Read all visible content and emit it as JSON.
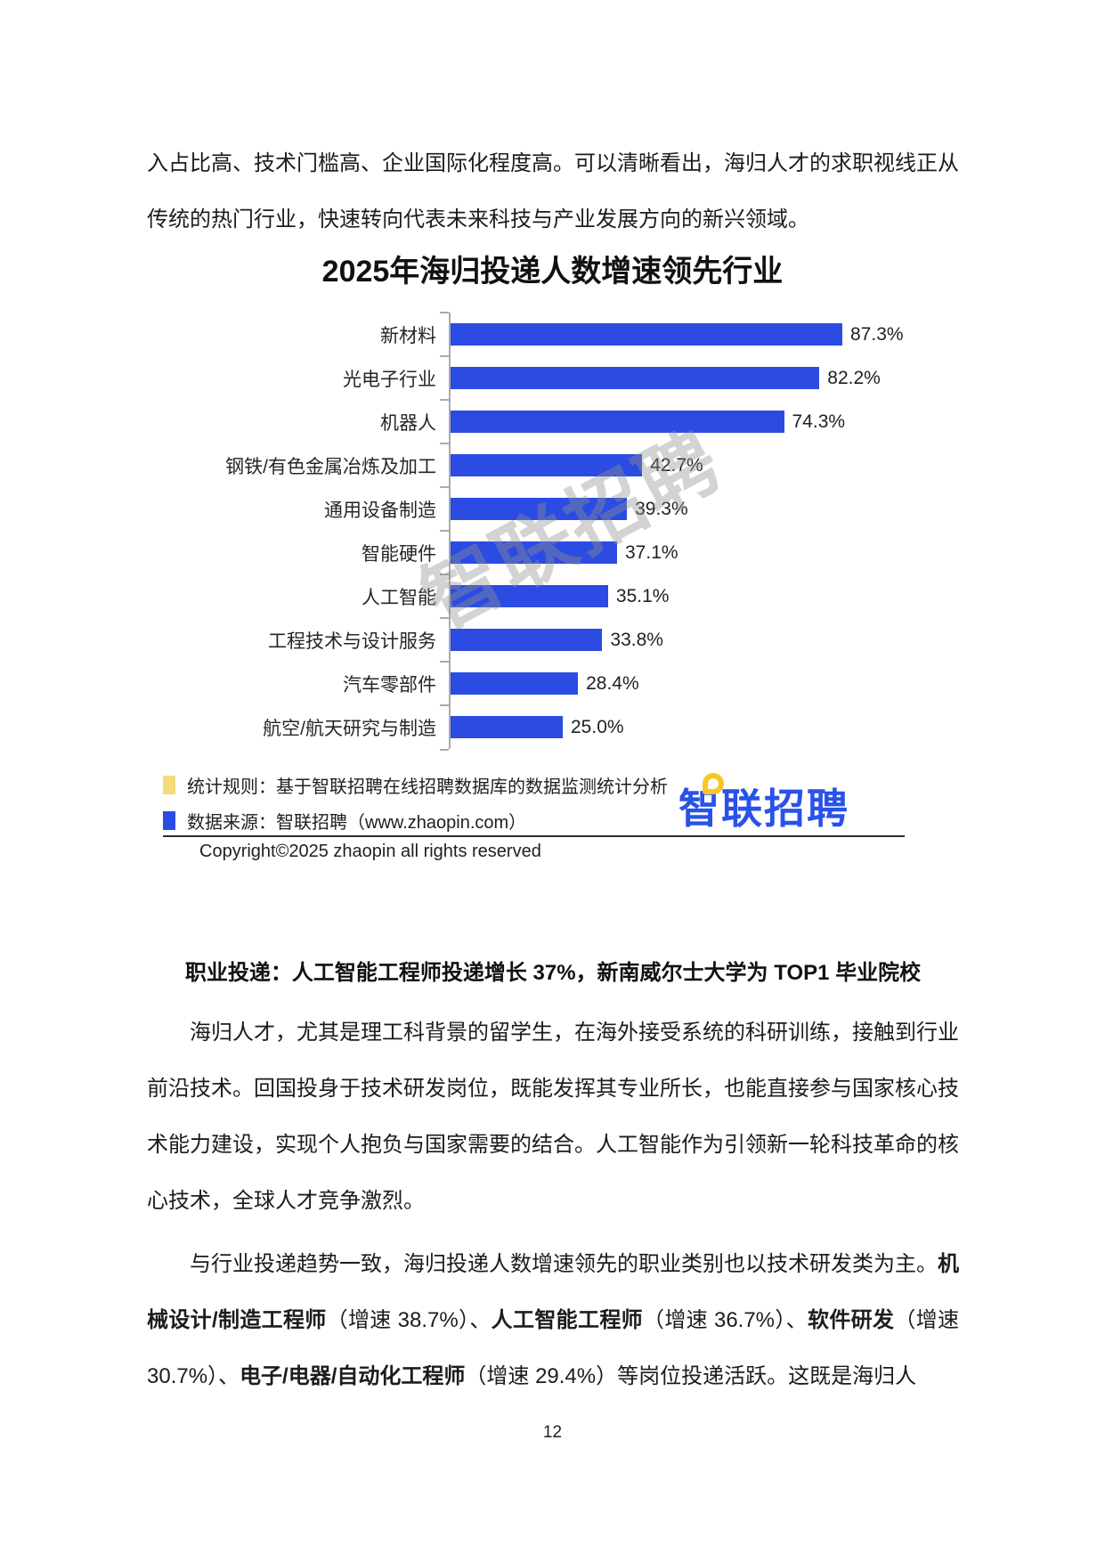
{
  "page": {
    "number": "12",
    "background": "#ffffff"
  },
  "intro_paragraph": "入占比高、技术门槛高、企业国际化程度高。可以清晰看出，海归人才的求职视线正从传统的热门行业，快速转向代表未来科技与产业发展方向的新兴领域。",
  "chart": {
    "title": "2025年海归投递人数增速领先行业",
    "bar_color": "#2B4BE2",
    "axis_color": "#ababab",
    "watermark_text": "智联招聘"
  },
  "chart_data": {
    "type": "bar",
    "orientation": "horizontal",
    "title": "2025年海归投递人数增速领先行业",
    "categories": [
      "新材料",
      "光电子行业",
      "机器人",
      "钢铁/有色金属冶炼及加工",
      "通用设备制造",
      "智能硬件",
      "人工智能",
      "工程技术与设计服务",
      "汽车零部件",
      "航空/航天研究与制造"
    ],
    "values": [
      87.3,
      82.2,
      74.3,
      42.7,
      39.3,
      37.1,
      35.1,
      33.8,
      28.4,
      25.0
    ],
    "value_labels": [
      "87.3%",
      "82.2%",
      "74.3%",
      "42.7%",
      "39.3%",
      "37.1%",
      "35.1%",
      "33.8%",
      "28.4%",
      "25.0%"
    ],
    "xlabel": "",
    "ylabel": "",
    "x_axis_visible": false,
    "grid": false,
    "legend_position": "bottom-left",
    "bar_color": "#2B4BE2"
  },
  "legend": {
    "items": [
      {
        "swatch_color": "#F6D97B",
        "label": "统计规则：基于智联招聘在线招聘数据库的数据监测统计分析"
      },
      {
        "swatch_color": "#2B4BE2",
        "label": "数据来源：智联招聘（www.zhaopin.com）"
      }
    ],
    "copyright": "Copyright©2025 zhaopin all rights reserved",
    "logo": {
      "text": "智联招聘",
      "color": "#2952E8",
      "pin_icon": "location-pin-icon",
      "pin_color": "#F8C723"
    }
  },
  "section": {
    "heading": "职业投递：人工智能工程师投递增长 37%，新南威尔士大学为 TOP1 毕业院校",
    "paragraph1": "海归人才，尤其是理工科背景的留学生，在海外接受系统的科研训练，接触到行业前沿技术。回国投身于技术研发岗位，既能发挥其专业所长，也能直接参与国家核心技术能力建设，实现个人抱负与国家需要的结合。人工智能作为引领新一轮科技革命的核心技术，全球人才竞争激烈。",
    "paragraph2_segments": [
      {
        "text": "与行业投递趋势一致，海归投递人数增速领先的职业类别也以技术研发类为主。",
        "bold": false
      },
      {
        "text": "机械设计/制造工程师",
        "bold": true
      },
      {
        "text": "（增速 38.7%）、",
        "bold": false
      },
      {
        "text": "人工智能工程师",
        "bold": true
      },
      {
        "text": "（增速 36.7%）、",
        "bold": false
      },
      {
        "text": "软件研发",
        "bold": true
      },
      {
        "text": "（增速 30.7%）、",
        "bold": false
      },
      {
        "text": "电子/电器/自动化工程师",
        "bold": true
      },
      {
        "text": "（增速 29.4%）等岗位投递活跃。这既是海归人",
        "bold": false
      }
    ]
  }
}
